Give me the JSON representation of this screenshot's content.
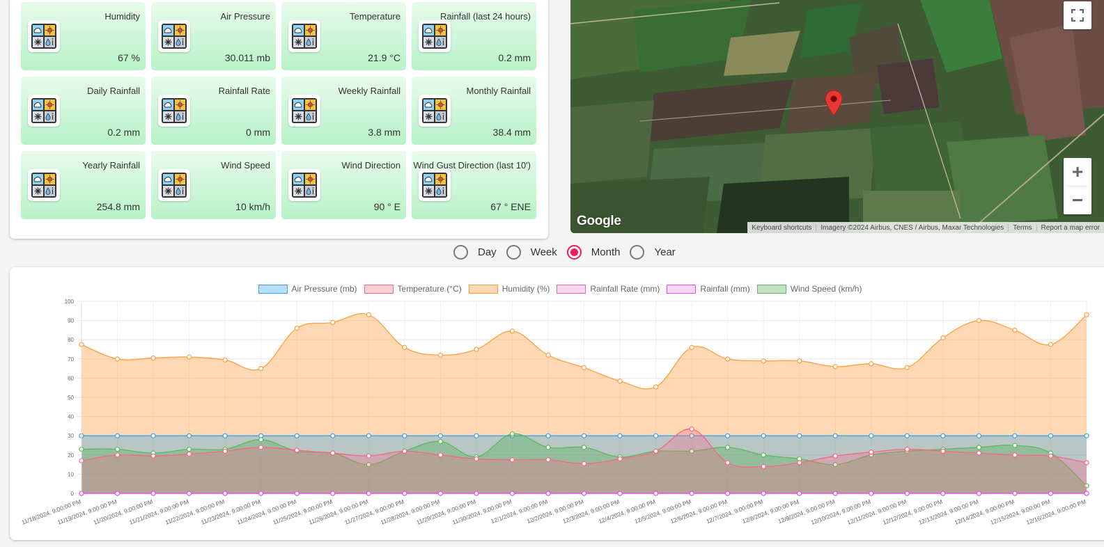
{
  "weather_cards": [
    {
      "title": "Humidity",
      "value": "67 %"
    },
    {
      "title": "Air Pressure",
      "value": "30.011 mb"
    },
    {
      "title": "Temperature",
      "value": "21.9 °C"
    },
    {
      "title": "Rainfall (last 24 hours)",
      "value": "0.2 mm"
    },
    {
      "title": "Daily Rainfall",
      "value": "0.2 mm"
    },
    {
      "title": "Rainfall Rate",
      "value": "0 mm"
    },
    {
      "title": "Weekly Rainfall",
      "value": "3.8 mm"
    },
    {
      "title": "Monthly Rainfall",
      "value": "38.4 mm"
    },
    {
      "title": "Yearly Rainfall",
      "value": "254.8 mm"
    },
    {
      "title": "Wind Speed",
      "value": "10 km/h"
    },
    {
      "title": "Wind Direction",
      "value": "90 ° E"
    },
    {
      "title": "Wind Gust Direction (last 10')",
      "value": "67 ° ENE"
    }
  ],
  "icons": {
    "card": "weather-conditions-icon",
    "fullscreen": "fullscreen-icon",
    "marker": "map-pin-icon"
  },
  "map": {
    "logo": "Google",
    "attribution": [
      "Keyboard shortcuts",
      "Imagery ©2024 Airbus, CNES / Airbus, Maxar Technologies",
      "Terms",
      "Report a map error"
    ],
    "zoom_in": "+",
    "zoom_out": "−"
  },
  "range_selector": {
    "options": [
      "Day",
      "Week",
      "Month",
      "Year"
    ],
    "selected": "Month"
  },
  "chart_data": {
    "type": "line",
    "title": "",
    "xlabel": "",
    "ylabel": "",
    "ylim": [
      0,
      100
    ],
    "yticks": [
      0,
      10,
      20,
      30,
      40,
      50,
      60,
      70,
      80,
      90,
      100
    ],
    "grid": true,
    "legend_position": "top",
    "categories": [
      "11/18/2024, 9:00:00 PM",
      "11/19/2024, 9:00:00 PM",
      "11/20/2024, 9:00:00 PM",
      "11/21/2024, 9:00:00 PM",
      "11/22/2024, 9:00:00 PM",
      "11/23/2024, 9:00:00 PM",
      "11/24/2024, 9:00:00 PM",
      "11/25/2024, 9:00:00 PM",
      "11/26/2024, 9:00:00 PM",
      "11/27/2024, 9:00:00 PM",
      "11/28/2024, 9:00:00 PM",
      "11/29/2024, 9:00:00 PM",
      "11/30/2024, 9:00:00 PM",
      "12/1/2024, 9:00:00 PM",
      "12/2/2024, 9:00:00 PM",
      "12/3/2024, 9:00:00 PM",
      "12/4/2024, 9:00:00 PM",
      "12/5/2024, 9:00:00 PM",
      "12/6/2024, 9:00:00 PM",
      "12/7/2024, 9:00:00 PM",
      "12/8/2024, 9:00:00 PM",
      "12/9/2024, 9:00:00 PM",
      "12/10/2024, 9:00:00 PM",
      "12/11/2024, 9:00:00 PM",
      "12/12/2024, 9:00:00 PM",
      "12/13/2024, 9:00:00 PM",
      "12/14/2024, 9:00:00 PM",
      "12/15/2024, 9:00:00 PM",
      "12/16/2024, 9:00:00 PM"
    ],
    "series": [
      {
        "name": "Air Pressure (mb)",
        "color": "#36a2eb",
        "fill": "rgba(54,162,235,0.35)",
        "values": [
          30,
          30,
          30,
          30,
          30,
          30,
          30,
          30,
          30,
          30,
          30,
          30,
          30,
          30,
          30,
          30,
          30,
          30,
          30,
          30,
          30,
          30,
          30,
          30,
          30,
          30,
          30,
          30,
          30
        ]
      },
      {
        "name": "Temperature (°C)",
        "color": "#ff6384",
        "fill": "rgba(255,99,132,0.3)",
        "values": [
          17,
          20,
          19.5,
          20.5,
          22,
          24,
          22.5,
          21,
          19.5,
          22,
          20,
          18,
          17.5,
          17.5,
          15.5,
          18,
          22,
          33.5,
          16,
          14,
          16,
          19.5,
          21.5,
          23,
          22,
          21,
          20,
          19.5,
          16
        ]
      },
      {
        "name": "Humidity (%)",
        "color": "#ff9f40",
        "fill": "rgba(255,159,64,0.4)",
        "values": [
          77.5,
          70,
          70.5,
          71,
          69.5,
          65,
          86,
          89,
          93,
          76,
          72,
          75,
          84.5,
          72,
          65.5,
          58.5,
          55.5,
          76,
          70,
          69,
          69,
          66,
          67.5,
          65.5,
          81,
          90,
          85,
          77.5,
          93
        ]
      },
      {
        "name": "Rainfall Rate (mm)",
        "color": "#e25fbb",
        "fill": "rgba(232,120,200,0.3)",
        "values": [
          0,
          0,
          0,
          0,
          0,
          0,
          0,
          0,
          0,
          0,
          0,
          0,
          0,
          0,
          0,
          0,
          0,
          0,
          0,
          0,
          0,
          0,
          0,
          0,
          0,
          0,
          0,
          0,
          0
        ]
      },
      {
        "name": "Rainfall (mm)",
        "color": "#ea4ee8",
        "fill": "rgba(240,120,240,0.3)",
        "values": [
          0,
          0,
          0,
          0,
          0,
          0,
          0,
          0,
          0,
          0,
          0,
          0,
          0,
          0,
          0,
          0,
          0,
          0,
          0,
          0,
          0,
          0,
          0,
          0,
          0,
          0,
          0,
          0,
          0
        ]
      },
      {
        "name": "Wind Speed (km/h)",
        "color": "#5cb85c",
        "fill": "rgba(76,175,80,0.35)",
        "values": [
          23,
          23,
          21,
          23,
          23,
          28,
          22,
          21,
          15,
          22,
          27,
          19,
          31,
          24,
          24,
          19,
          22,
          22,
          24,
          20,
          18,
          15,
          20,
          22,
          23,
          24,
          25,
          21,
          4
        ]
      }
    ]
  }
}
